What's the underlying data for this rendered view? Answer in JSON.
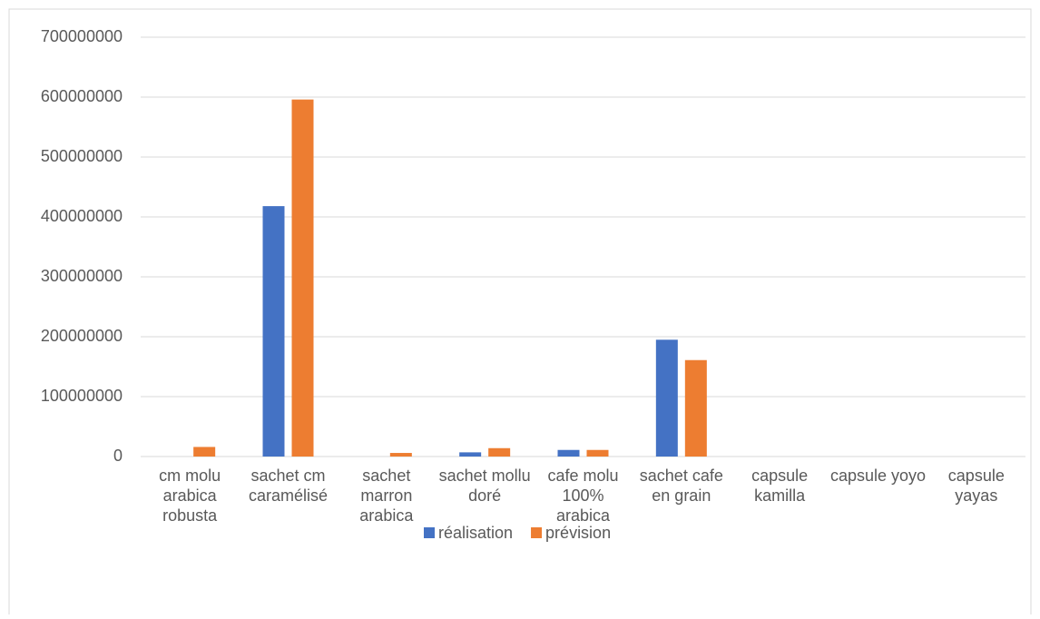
{
  "chart_data": {
    "type": "bar",
    "categories": [
      "cm molu arabica robusta",
      "sachet cm caramélisé",
      "sachet marron arabica",
      "sachet mollu doré",
      "cafe molu 100% arabica",
      "sachet cafe en grain",
      "capsule kamilla",
      "capsule yoyo",
      "capsule yayas"
    ],
    "series": [
      {
        "name": "réalisation",
        "color": "#4472c4",
        "values": [
          0,
          418000000,
          0,
          7000000,
          11000000,
          195000000,
          0,
          0,
          0
        ]
      },
      {
        "name": "prévision",
        "color": "#ed7d31",
        "values": [
          16000000,
          596000000,
          6000000,
          14000000,
          11000000,
          161000000,
          0,
          0,
          0
        ]
      }
    ],
    "ylim": [
      0,
      700000000
    ],
    "yticks": [
      0,
      100000000,
      200000000,
      300000000,
      400000000,
      500000000,
      600000000,
      700000000
    ],
    "grid": true,
    "legend": "bottom"
  }
}
